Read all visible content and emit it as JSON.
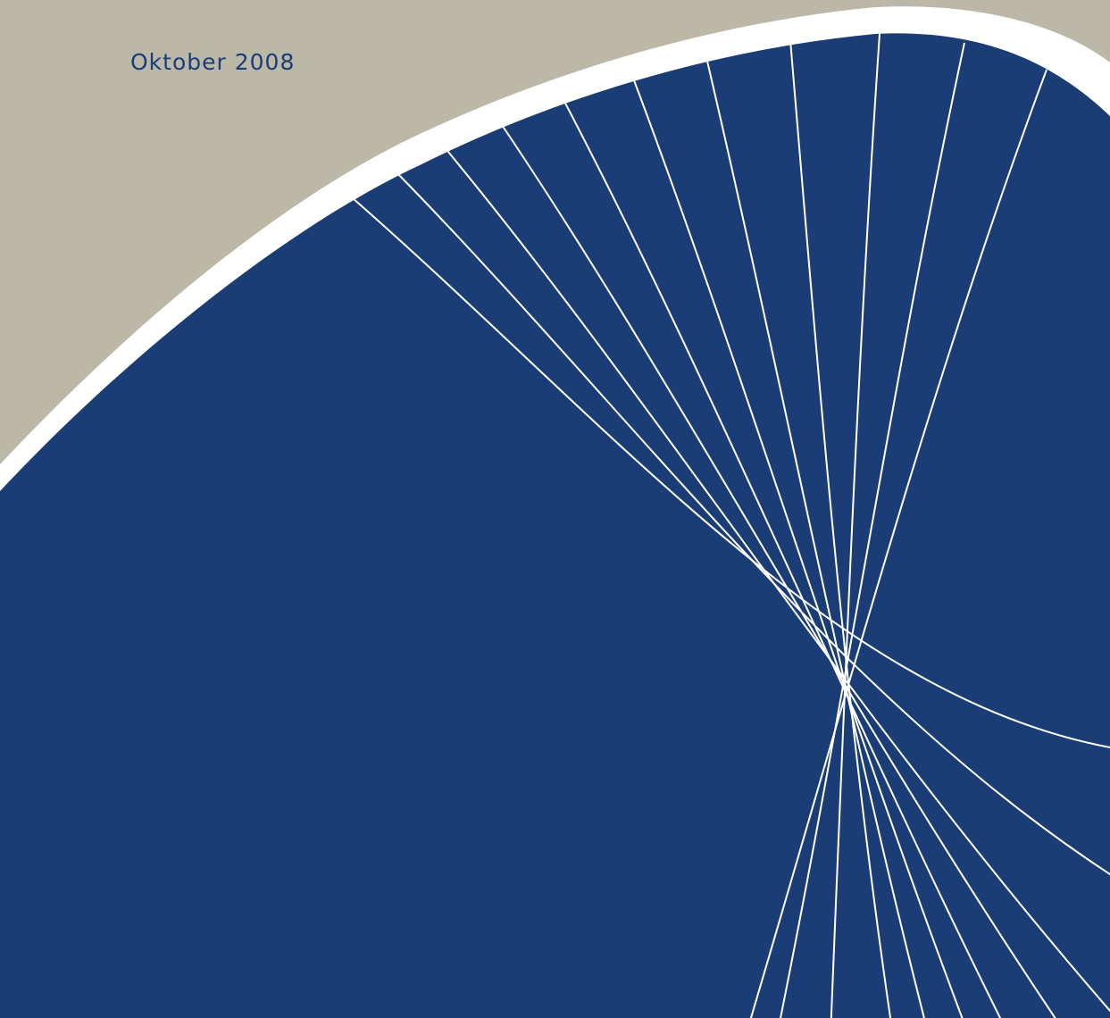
{
  "date": "Oktober 2008"
}
